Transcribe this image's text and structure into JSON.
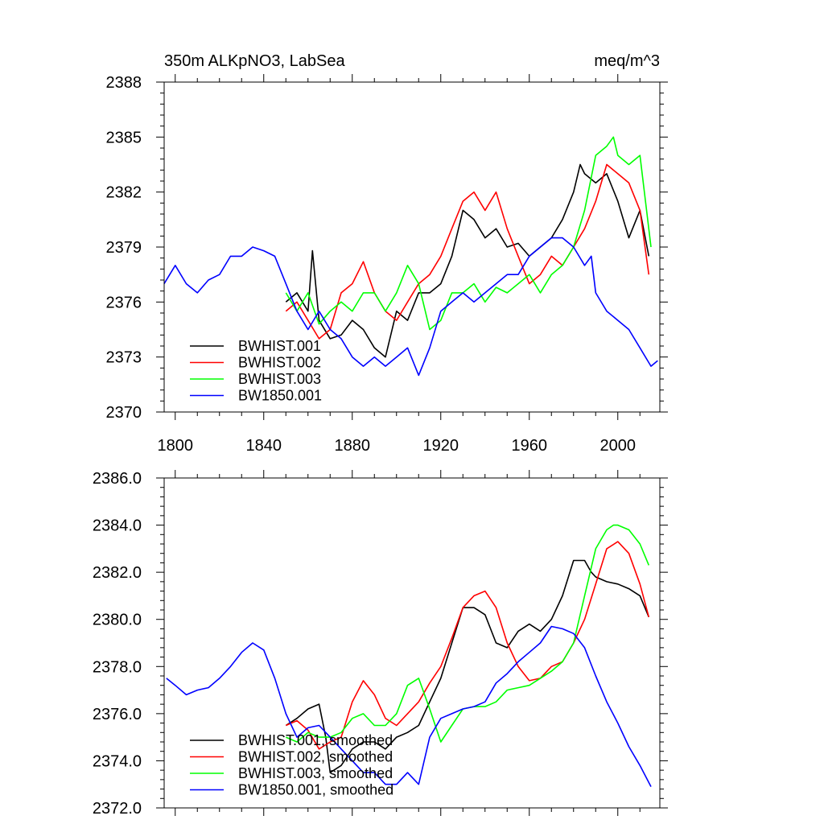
{
  "chart_data": [
    {
      "type": "line",
      "title": "350m ALKpNO3, LabSea",
      "units": "meq/m^3",
      "xlim": [
        1795,
        2019
      ],
      "ylim": [
        2370,
        2388
      ],
      "xticks": [
        1800,
        1840,
        1880,
        1920,
        1960,
        2000
      ],
      "yticks": [
        2370,
        2373,
        2376,
        2379,
        2382,
        2385,
        2388
      ],
      "ytick_labels": [
        "2370",
        "2373",
        "2376",
        "2379",
        "2382",
        "2385",
        "2388"
      ],
      "xtick_labels": [
        "1800",
        "1840",
        "1880",
        "1920",
        "1960",
        "2000"
      ],
      "legend_position": "bottom-left",
      "series": [
        {
          "name": "BWHIST.001",
          "color": "#000000",
          "x": [
            1850,
            1855,
            1860,
            1862,
            1865,
            1870,
            1875,
            1880,
            1885,
            1890,
            1895,
            1900,
            1905,
            1910,
            1915,
            1920,
            1925,
            1930,
            1935,
            1940,
            1945,
            1950,
            1955,
            1960,
            1965,
            1970,
            1975,
            1980,
            1983,
            1985,
            1990,
            1995,
            2000,
            2005,
            2010,
            2014
          ],
          "y": [
            2376.0,
            2376.5,
            2375.5,
            2378.8,
            2375.0,
            2374.0,
            2374.2,
            2375.0,
            2374.5,
            2373.5,
            2373.0,
            2375.5,
            2375.0,
            2376.5,
            2376.5,
            2377.0,
            2378.5,
            2381.0,
            2380.5,
            2379.5,
            2380.0,
            2379.0,
            2379.2,
            2378.5,
            2379.0,
            2379.5,
            2380.5,
            2382.0,
            2383.5,
            2383.0,
            2382.5,
            2383.0,
            2381.5,
            2379.5,
            2381.0,
            2378.5
          ]
        },
        {
          "name": "BWHIST.002",
          "color": "#ff0000",
          "x": [
            1850,
            1855,
            1860,
            1865,
            1870,
            1875,
            1880,
            1885,
            1890,
            1895,
            1900,
            1905,
            1910,
            1915,
            1920,
            1925,
            1930,
            1935,
            1940,
            1945,
            1950,
            1955,
            1960,
            1965,
            1970,
            1975,
            1980,
            1985,
            1990,
            1995,
            2000,
            2005,
            2010,
            2014
          ],
          "y": [
            2375.5,
            2376.0,
            2375.0,
            2374.0,
            2374.5,
            2376.5,
            2377.0,
            2378.2,
            2376.5,
            2375.5,
            2375.0,
            2376.0,
            2377.0,
            2377.5,
            2378.5,
            2380.0,
            2381.5,
            2382.0,
            2381.0,
            2382.0,
            2380.0,
            2378.5,
            2377.0,
            2377.5,
            2378.5,
            2378.0,
            2379.0,
            2380.0,
            2381.5,
            2383.5,
            2383.0,
            2382.5,
            2381.0,
            2377.5
          ]
        },
        {
          "name": "BWHIST.003",
          "color": "#00ff00",
          "x": [
            1850,
            1855,
            1860,
            1865,
            1870,
            1875,
            1880,
            1885,
            1890,
            1895,
            1900,
            1905,
            1910,
            1915,
            1920,
            1925,
            1930,
            1935,
            1940,
            1945,
            1950,
            1955,
            1960,
            1965,
            1970,
            1975,
            1980,
            1985,
            1990,
            1995,
            1998,
            2000,
            2005,
            2010,
            2015
          ],
          "y": [
            2376.5,
            2375.5,
            2376.5,
            2374.8,
            2375.5,
            2376.0,
            2375.5,
            2376.5,
            2376.5,
            2375.5,
            2376.5,
            2378.0,
            2377.0,
            2374.5,
            2375.0,
            2376.5,
            2376.5,
            2377.0,
            2376.0,
            2376.8,
            2376.5,
            2377.0,
            2377.5,
            2376.5,
            2377.5,
            2378.0,
            2379.0,
            2381.0,
            2384.0,
            2384.5,
            2385.0,
            2384.0,
            2383.5,
            2384.0,
            2379.0
          ]
        },
        {
          "name": "BW1850.001",
          "color": "#0000ff",
          "x": [
            1795,
            1800,
            1805,
            1810,
            1815,
            1820,
            1825,
            1830,
            1835,
            1840,
            1845,
            1850,
            1855,
            1860,
            1865,
            1870,
            1875,
            1880,
            1885,
            1890,
            1895,
            1900,
            1905,
            1910,
            1915,
            1920,
            1925,
            1930,
            1935,
            1940,
            1945,
            1950,
            1955,
            1960,
            1965,
            1970,
            1975,
            1980,
            1985,
            1988,
            1990,
            1995,
            2000,
            2005,
            2010,
            2015,
            2018
          ],
          "y": [
            2377.0,
            2378.0,
            2377.0,
            2376.5,
            2377.2,
            2377.5,
            2378.5,
            2378.5,
            2379.0,
            2378.8,
            2378.5,
            2377.0,
            2375.5,
            2374.5,
            2375.5,
            2374.5,
            2374.0,
            2373.0,
            2372.5,
            2373.0,
            2372.5,
            2373.0,
            2373.5,
            2372.0,
            2373.5,
            2375.5,
            2376.0,
            2376.5,
            2376.0,
            2376.5,
            2377.0,
            2377.5,
            2377.5,
            2378.5,
            2379.0,
            2379.5,
            2379.5,
            2379.0,
            2378.0,
            2378.5,
            2376.5,
            2375.5,
            2375.0,
            2374.5,
            2373.5,
            2372.5,
            2372.8
          ]
        }
      ]
    },
    {
      "type": "line",
      "title": "",
      "units": "",
      "xlim": [
        1795,
        2019
      ],
      "ylim": [
        2372,
        2386
      ],
      "xticks": [
        1800,
        1840,
        1880,
        1920,
        1960,
        2000
      ],
      "yticks": [
        2372,
        2374,
        2376,
        2378,
        2380,
        2382,
        2384,
        2386
      ],
      "ytick_labels": [
        "2372.0",
        "2374.0",
        "2376.0",
        "2378.0",
        "2380.0",
        "2382.0",
        "2384.0",
        "2386.0"
      ],
      "xtick_labels": [],
      "legend_position": "bottom-left",
      "series": [
        {
          "name": "BWHIST.001, smoothed",
          "color": "#000000",
          "x": [
            1850,
            1855,
            1860,
            1865,
            1868,
            1870,
            1875,
            1880,
            1885,
            1890,
            1895,
            1900,
            1905,
            1910,
            1915,
            1920,
            1925,
            1930,
            1935,
            1940,
            1945,
            1950,
            1955,
            1960,
            1965,
            1970,
            1975,
            1980,
            1985,
            1988,
            1990,
            1995,
            2000,
            2005,
            2010,
            2014
          ],
          "y": [
            2375.5,
            2375.8,
            2376.2,
            2376.4,
            2375.0,
            2373.5,
            2373.8,
            2374.5,
            2374.8,
            2374.8,
            2374.5,
            2375.0,
            2375.2,
            2375.5,
            2376.5,
            2377.5,
            2379.0,
            2380.5,
            2380.5,
            2380.2,
            2379.0,
            2378.8,
            2379.5,
            2379.8,
            2379.5,
            2380.0,
            2381.0,
            2382.5,
            2382.5,
            2382.0,
            2381.8,
            2381.6,
            2381.5,
            2381.3,
            2381.0,
            2380.1
          ]
        },
        {
          "name": "BWHIST.002, smoothed",
          "color": "#ff0000",
          "x": [
            1850,
            1855,
            1860,
            1865,
            1870,
            1875,
            1880,
            1885,
            1890,
            1895,
            1900,
            1905,
            1910,
            1915,
            1920,
            1925,
            1930,
            1935,
            1940,
            1945,
            1950,
            1955,
            1960,
            1965,
            1970,
            1975,
            1980,
            1985,
            1990,
            1995,
            2000,
            2005,
            2010,
            2014
          ],
          "y": [
            2375.5,
            2375.7,
            2375.3,
            2374.5,
            2374.8,
            2375.0,
            2376.5,
            2377.4,
            2376.8,
            2375.8,
            2375.5,
            2376.0,
            2376.5,
            2377.3,
            2378.0,
            2379.2,
            2380.5,
            2381.0,
            2381.2,
            2380.5,
            2379.0,
            2378.0,
            2377.4,
            2377.5,
            2378.0,
            2378.2,
            2379.0,
            2380.0,
            2381.5,
            2383.0,
            2383.3,
            2382.8,
            2381.5,
            2380.1
          ]
        },
        {
          "name": "BWHIST.003, smoothed",
          "color": "#00ff00",
          "x": [
            1850,
            1855,
            1860,
            1865,
            1870,
            1875,
            1880,
            1885,
            1890,
            1895,
            1900,
            1905,
            1910,
            1915,
            1920,
            1925,
            1930,
            1935,
            1940,
            1945,
            1950,
            1955,
            1960,
            1965,
            1970,
            1975,
            1980,
            1985,
            1990,
            1995,
            1998,
            2000,
            2005,
            2010,
            2014
          ],
          "y": [
            2375.0,
            2374.8,
            2375.2,
            2375.0,
            2375.0,
            2375.2,
            2375.8,
            2376.0,
            2375.5,
            2375.5,
            2376.0,
            2377.2,
            2377.5,
            2376.2,
            2374.8,
            2375.5,
            2376.2,
            2376.3,
            2376.3,
            2376.5,
            2377.0,
            2377.1,
            2377.2,
            2377.5,
            2377.8,
            2378.2,
            2379.0,
            2381.0,
            2383.0,
            2383.8,
            2384.0,
            2384.0,
            2383.8,
            2383.2,
            2382.3
          ]
        },
        {
          "name": "BW1850.001, smoothed",
          "color": "#0000ff",
          "x": [
            1796,
            1800,
            1805,
            1810,
            1815,
            1820,
            1825,
            1830,
            1835,
            1840,
            1845,
            1850,
            1855,
            1860,
            1865,
            1870,
            1875,
            1880,
            1885,
            1890,
            1895,
            1900,
            1905,
            1910,
            1915,
            1920,
            1925,
            1930,
            1935,
            1940,
            1945,
            1950,
            1955,
            1960,
            1965,
            1970,
            1975,
            1980,
            1985,
            1990,
            1995,
            2000,
            2005,
            2010,
            2015
          ],
          "y": [
            2377.5,
            2377.2,
            2376.8,
            2377.0,
            2377.1,
            2377.5,
            2378.0,
            2378.6,
            2379.0,
            2378.7,
            2377.5,
            2376.0,
            2375.0,
            2375.4,
            2375.5,
            2375.0,
            2374.5,
            2374.0,
            2373.5,
            2373.5,
            2373.0,
            2373.0,
            2373.5,
            2373.0,
            2375.0,
            2375.8,
            2376.0,
            2376.2,
            2376.3,
            2376.5,
            2377.3,
            2377.7,
            2378.2,
            2378.6,
            2379.0,
            2379.7,
            2379.6,
            2379.4,
            2378.8,
            2377.6,
            2376.5,
            2375.6,
            2374.6,
            2373.8,
            2372.9
          ]
        }
      ]
    }
  ]
}
